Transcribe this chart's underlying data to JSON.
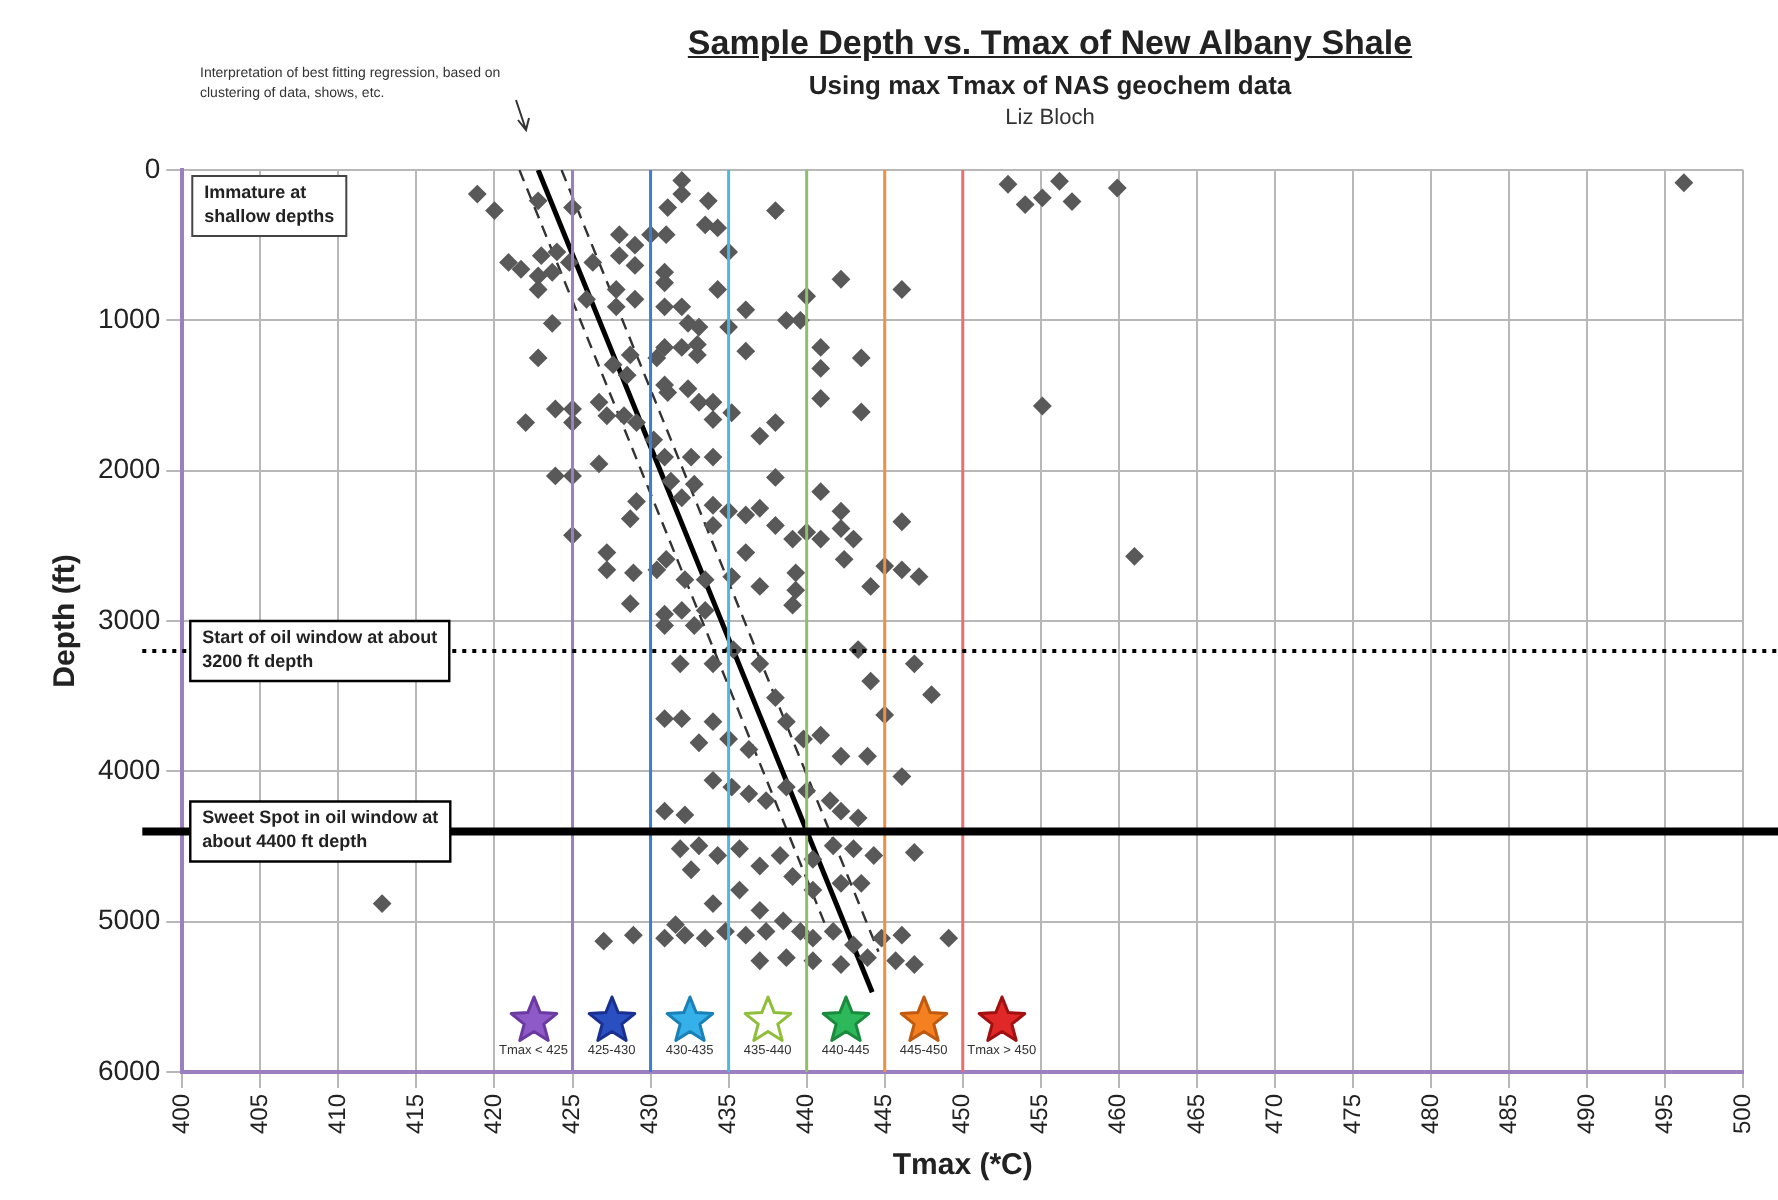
{
  "chart_data": {
    "type": "scatter",
    "title": "Sample Depth vs. Tmax of New Albany Shale",
    "subtitle": "Using max Tmax of NAS geochem data",
    "xlabel": "Tmax (*C)",
    "ylabel": "Depth (ft)",
    "annotations": [
      "Liz Bloch",
      "Interpretation of best fitting regression, based on clustering of data, shows, etc.",
      "Immature at shallow depths",
      "Tmax < 425",
      "425-430",
      "430-435",
      "435-440",
      "440-445",
      "445-450",
      "Tmax > 450"
    ],
    "xlim": [
      400,
      500
    ],
    "xticks": [
      400,
      405,
      410,
      415,
      420,
      425,
      430,
      435,
      440,
      445,
      450,
      455,
      460,
      465,
      470,
      475,
      480,
      485,
      490,
      495,
      500
    ],
    "ylim": [
      6000,
      0
    ],
    "yticks": [
      0,
      1000,
      2000,
      3000,
      4000,
      5000,
      6000
    ],
    "grid": true,
    "marker": "diamond",
    "ref_lines": [
      {
        "axis": "x",
        "value": 425,
        "color": "#9b7fc0"
      },
      {
        "axis": "x",
        "value": 430,
        "color": "#3a7fd0"
      },
      {
        "axis": "x",
        "value": 435,
        "color": "#4fb8e0"
      },
      {
        "axis": "x",
        "value": 440,
        "color": "#8fbf6a"
      },
      {
        "axis": "x",
        "value": 445,
        "color": "#f09040"
      },
      {
        "axis": "x",
        "value": 450,
        "color": "#e87070"
      },
      {
        "axis": "y",
        "value": 3200,
        "label": "Start of oil window at about 3200 ft depth",
        "color": "#000000",
        "line_style": "dotted"
      },
      {
        "axis": "y",
        "value": 4400,
        "label": "Sweet Spot in oil window at about 4400 ft depth",
        "color": "#000000",
        "line_style": "solid"
      }
    ],
    "series": [
      {
        "color": "#595959",
        "x": [
          418.9,
          420,
          422.8,
          425,
          432,
          432,
          431.1,
          433.7,
          438,
          430,
          431,
          428,
          429,
          433.5,
          434.3,
          435,
          420.9,
          421.7,
          423,
          424,
          424.8,
          426.3,
          428,
          429,
          430.9,
          430.9,
          422.8,
          423.7,
          434.3,
          442.2,
          446.1,
          440,
          422.8,
          423.7,
          425.9,
          427.8,
          427.8,
          429,
          430.9,
          432,
          432.4,
          433.1,
          435,
          436.1,
          438.7,
          439.6,
          440.9,
          440.9,
          440.9,
          443.5,
          443.5,
          436.1,
          422.8,
          428.7,
          430.4,
          430.9,
          432,
          433,
          433,
          427.6,
          428.5,
          430.9,
          431.1,
          432.4,
          433.1,
          434,
          434,
          435.2,
          438,
          437,
          422,
          423.9,
          425,
          425,
          426.7,
          427.2,
          428.3,
          429.1,
          430.2,
          430.9,
          432.6,
          434,
          423.9,
          425,
          425,
          426.7,
          429.1,
          428.7,
          431.3,
          432,
          432.8,
          434,
          434,
          435,
          436.1,
          437,
          438,
          438,
          439.1,
          440,
          440.9,
          442.2,
          442.2,
          443,
          446.1,
          440.9,
          427.2,
          427.2,
          428.9,
          430.4,
          431,
          432.2,
          433.5,
          435.2,
          436.1,
          437,
          439.3,
          439.3,
          442.4,
          444.1,
          445,
          446.1,
          447.2,
          428.7,
          430.9,
          432,
          433.5,
          430.9,
          432.8,
          431.9,
          434,
          435.3,
          437,
          439.1,
          443.3,
          446.9,
          448,
          444.1,
          445,
          430.9,
          432,
          434,
          433.1,
          435,
          436.3,
          438,
          438.7,
          439.8,
          440.9,
          442.2,
          443.9,
          446.1,
          434,
          435.2,
          436.3,
          437.4,
          438.7,
          440,
          441.5,
          442.2,
          443.3,
          430.9,
          432.2,
          431.9,
          433.1,
          432.6,
          434.3,
          435.7,
          437,
          438.3,
          439.1,
          440.4,
          441.7,
          443,
          444.3,
          446.9,
          440.4,
          442.2,
          443.5,
          435.7,
          434,
          437,
          431.6,
          430.9,
          432.2,
          433.5,
          434.8,
          436.1,
          437.4,
          438.5,
          439.6,
          440.4,
          441.7,
          443,
          444.8,
          446.1,
          449.1,
          427,
          428.9,
          438.7,
          440.4,
          442.2,
          443.9,
          445.7,
          446.9,
          437,
          452.9,
          454,
          455.1,
          456.2,
          457,
          459.9,
          455.1,
          461,
          496.2,
          412.8
        ],
        "values": [
          160,
          270,
          205,
          250,
          70,
          160,
          250,
          205,
          270,
          430,
          430,
          430,
          500,
          365,
          385,
          545,
          615,
          660,
          570,
          545,
          615,
          615,
          570,
          635,
          680,
          750,
          705,
          680,
          795,
          727,
          795,
          840,
          795,
          1020,
          860,
          795,
          910,
          860,
          910,
          910,
          1020,
          1045,
          1045,
          930,
          1000,
          1000,
          1180,
          1320,
          1520,
          1250,
          1610,
          1205,
          1250,
          1230,
          1250,
          1180,
          1180,
          1160,
          1230,
          1295,
          1365,
          1430,
          1480,
          1455,
          1545,
          1545,
          1660,
          1615,
          1680,
          1770,
          1680,
          1590,
          1590,
          1680,
          1545,
          1635,
          1635,
          1680,
          1795,
          1910,
          1910,
          1910,
          2035,
          2035,
          2430,
          1955,
          2205,
          2320,
          2070,
          2180,
          2090,
          2230,
          2365,
          2270,
          2295,
          2250,
          2045,
          2365,
          2455,
          2410,
          2140,
          2270,
          2385,
          2455,
          2340,
          2455,
          2545,
          2660,
          2680,
          2660,
          2590,
          2725,
          2725,
          2705,
          2545,
          2770,
          2680,
          2795,
          2590,
          2770,
          2635,
          2660,
          2705,
          2885,
          2955,
          2930,
          2930,
          3030,
          3030,
          3285,
          3285,
          3190,
          3285,
          2895,
          3190,
          3285,
          3490,
          3400,
          3625,
          3650,
          3650,
          3670,
          3810,
          3785,
          3855,
          3510,
          3670,
          3785,
          3760,
          3900,
          3900,
          4035,
          4060,
          4105,
          4150,
          4195,
          4105,
          4130,
          4195,
          4265,
          4310,
          4265,
          4290,
          4515,
          4495,
          4655,
          4560,
          4515,
          4630,
          4560,
          4700,
          4585,
          4495,
          4515,
          4560,
          4540,
          4790,
          4745,
          4745,
          4790,
          4880,
          4925,
          5020,
          5110,
          5090,
          5110,
          5065,
          5090,
          5065,
          4995,
          5065,
          5110,
          5065,
          5155,
          5110,
          5090,
          5110,
          5130,
          5090,
          5240,
          5260,
          5285,
          5240,
          5260,
          5285,
          5260,
          95,
          230,
          185,
          75,
          210,
          120,
          1570,
          2570,
          85,
          4880
        ]
      },
      {
        "type": "line",
        "color": "#000000",
        "line_style": "solid",
        "marker": "none",
        "x": [
          422.8,
          444.2
        ],
        "values": [
          0,
          5470
        ]
      },
      {
        "type": "line",
        "color": "#333333",
        "line_style": "dashed",
        "marker": "none",
        "x": [
          421.6,
          441.5
        ],
        "values": [
          0,
          5100
        ]
      },
      {
        "type": "line",
        "color": "#333333",
        "line_style": "dashed",
        "marker": "none",
        "x": [
          424.3,
          444.6
        ],
        "values": [
          0,
          5200
        ]
      }
    ]
  }
}
